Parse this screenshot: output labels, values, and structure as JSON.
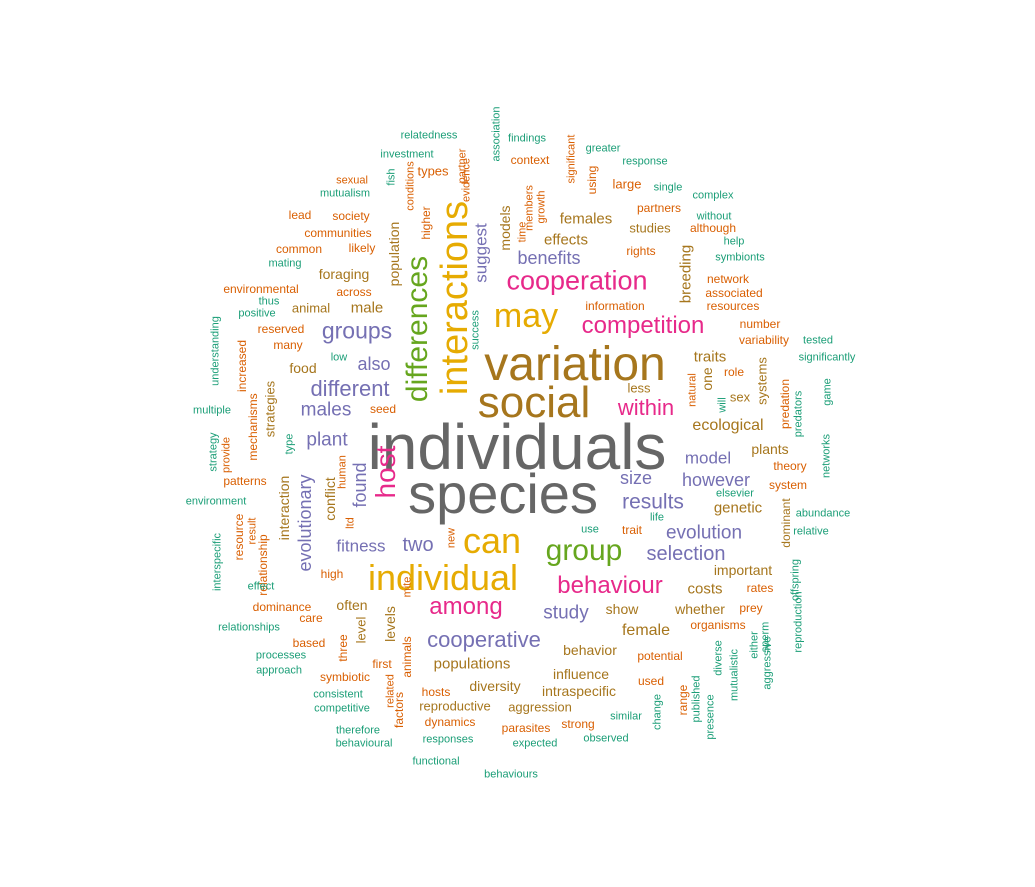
{
  "palette": {
    "gray": "#666666",
    "olive": "#A6761D",
    "gold": "#E6AB02",
    "green": "#66A61E",
    "magenta": "#E7298A",
    "purple": "#7570B3",
    "orange": "#D95F02",
    "teal": "#1B9E77"
  },
  "words": [
    {
      "text": "individuals",
      "color": "gray"
    },
    {
      "text": "species",
      "color": "gray"
    },
    {
      "text": "variation",
      "color": "olive"
    },
    {
      "text": "social",
      "color": "olive"
    },
    {
      "text": "interactions",
      "color": "gold"
    },
    {
      "text": "may",
      "color": "gold"
    },
    {
      "text": "can",
      "color": "gold"
    },
    {
      "text": "individual",
      "color": "gold"
    },
    {
      "text": "group",
      "color": "green"
    },
    {
      "text": "differences",
      "color": "green"
    },
    {
      "text": "cooperation",
      "color": "magenta"
    },
    {
      "text": "competition",
      "color": "magenta"
    },
    {
      "text": "within",
      "color": "magenta"
    },
    {
      "text": "behaviour",
      "color": "magenta"
    },
    {
      "text": "among",
      "color": "magenta"
    },
    {
      "text": "host",
      "color": "magenta"
    },
    {
      "text": "groups",
      "color": "purple"
    },
    {
      "text": "different",
      "color": "purple"
    },
    {
      "text": "males",
      "color": "purple"
    },
    {
      "text": "also",
      "color": "purple"
    },
    {
      "text": "plant",
      "color": "purple"
    },
    {
      "text": "results",
      "color": "purple"
    },
    {
      "text": "however",
      "color": "purple"
    },
    {
      "text": "size",
      "color": "purple"
    },
    {
      "text": "model",
      "color": "purple"
    },
    {
      "text": "evolution",
      "color": "purple"
    },
    {
      "text": "selection",
      "color": "purple"
    },
    {
      "text": "two",
      "color": "purple"
    },
    {
      "text": "fitness",
      "color": "purple"
    },
    {
      "text": "study",
      "color": "purple"
    },
    {
      "text": "cooperative",
      "color": "purple"
    },
    {
      "text": "benefits",
      "color": "purple"
    },
    {
      "text": "suggest",
      "color": "purple"
    },
    {
      "text": "found",
      "color": "purple"
    },
    {
      "text": "evolutionary",
      "color": "purple"
    },
    {
      "text": "effects",
      "color": "olive"
    },
    {
      "text": "females",
      "color": "olive"
    },
    {
      "text": "traits",
      "color": "olive"
    },
    {
      "text": "ecological",
      "color": "olive"
    },
    {
      "text": "genetic",
      "color": "olive"
    },
    {
      "text": "important",
      "color": "olive"
    },
    {
      "text": "costs",
      "color": "olive"
    },
    {
      "text": "whether",
      "color": "olive"
    },
    {
      "text": "female",
      "color": "olive"
    },
    {
      "text": "behavior",
      "color": "olive"
    },
    {
      "text": "show",
      "color": "olive"
    },
    {
      "text": "populations",
      "color": "olive"
    },
    {
      "text": "influence",
      "color": "olive"
    },
    {
      "text": "diversity",
      "color": "olive"
    },
    {
      "text": "intraspecific",
      "color": "olive"
    },
    {
      "text": "aggression",
      "color": "olive"
    },
    {
      "text": "reproductive",
      "color": "olive"
    },
    {
      "text": "often",
      "color": "olive"
    },
    {
      "text": "levels",
      "color": "olive"
    },
    {
      "text": "level",
      "color": "olive"
    },
    {
      "text": "foraging",
      "color": "olive"
    },
    {
      "text": "male",
      "color": "olive"
    },
    {
      "text": "animal",
      "color": "olive"
    },
    {
      "text": "food",
      "color": "olive"
    },
    {
      "text": "population",
      "color": "olive"
    },
    {
      "text": "models",
      "color": "olive"
    },
    {
      "text": "studies",
      "color": "olive"
    },
    {
      "text": "breeding",
      "color": "olive"
    },
    {
      "text": "plants",
      "color": "olive"
    },
    {
      "text": "systems",
      "color": "olive"
    },
    {
      "text": "sex",
      "color": "olive"
    },
    {
      "text": "one",
      "color": "olive"
    },
    {
      "text": "less",
      "color": "olive"
    },
    {
      "text": "interaction",
      "color": "olive"
    },
    {
      "text": "conflict",
      "color": "olive"
    },
    {
      "text": "strategies",
      "color": "olive"
    },
    {
      "text": "dominant",
      "color": "olive"
    },
    {
      "text": "animals",
      "color": "orange"
    },
    {
      "text": "higher",
      "color": "orange"
    },
    {
      "text": "types",
      "color": "orange"
    },
    {
      "text": "conditions",
      "color": "orange"
    },
    {
      "text": "evidence",
      "color": "orange"
    },
    {
      "text": "members",
      "color": "orange"
    },
    {
      "text": "growth",
      "color": "orange"
    },
    {
      "text": "context",
      "color": "orange"
    },
    {
      "text": "significant",
      "color": "orange"
    },
    {
      "text": "using",
      "color": "orange"
    },
    {
      "text": "large",
      "color": "orange"
    },
    {
      "text": "partners",
      "color": "orange"
    },
    {
      "text": "rights",
      "color": "orange"
    },
    {
      "text": "although",
      "color": "orange"
    },
    {
      "text": "network",
      "color": "orange"
    },
    {
      "text": "associated",
      "color": "orange"
    },
    {
      "text": "resources",
      "color": "orange"
    },
    {
      "text": "information",
      "color": "orange"
    },
    {
      "text": "number",
      "color": "orange"
    },
    {
      "text": "variability",
      "color": "orange"
    },
    {
      "text": "role",
      "color": "orange"
    },
    {
      "text": "predation",
      "color": "orange"
    },
    {
      "text": "natural",
      "color": "orange"
    },
    {
      "text": "theory",
      "color": "orange"
    },
    {
      "text": "system",
      "color": "orange"
    },
    {
      "text": "trait",
      "color": "orange"
    },
    {
      "text": "prey",
      "color": "orange"
    },
    {
      "text": "rates",
      "color": "orange"
    },
    {
      "text": "organisms",
      "color": "orange"
    },
    {
      "text": "potential",
      "color": "orange"
    },
    {
      "text": "used",
      "color": "orange"
    },
    {
      "text": "range",
      "color": "orange"
    },
    {
      "text": "parasites",
      "color": "orange"
    },
    {
      "text": "strong",
      "color": "orange"
    },
    {
      "text": "dynamics",
      "color": "orange"
    },
    {
      "text": "hosts",
      "color": "orange"
    },
    {
      "text": "first",
      "color": "orange"
    },
    {
      "text": "factors",
      "color": "orange"
    },
    {
      "text": "symbiotic",
      "color": "orange"
    },
    {
      "text": "three",
      "color": "orange"
    },
    {
      "text": "based",
      "color": "orange"
    },
    {
      "text": "care",
      "color": "orange"
    },
    {
      "text": "dominance",
      "color": "orange"
    },
    {
      "text": "high",
      "color": "orange"
    },
    {
      "text": "relationship",
      "color": "orange"
    },
    {
      "text": "resource",
      "color": "orange"
    },
    {
      "text": "patterns",
      "color": "orange"
    },
    {
      "text": "mechanisms",
      "color": "orange"
    },
    {
      "text": "seed",
      "color": "orange"
    },
    {
      "text": "many",
      "color": "orange"
    },
    {
      "text": "reserved",
      "color": "orange"
    },
    {
      "text": "increased",
      "color": "orange"
    },
    {
      "text": "environmental",
      "color": "orange"
    },
    {
      "text": "common",
      "color": "orange"
    },
    {
      "text": "communities",
      "color": "orange"
    },
    {
      "text": "society",
      "color": "orange"
    },
    {
      "text": "likely",
      "color": "orange"
    },
    {
      "text": "across",
      "color": "orange"
    },
    {
      "text": "sexual",
      "color": "orange"
    },
    {
      "text": "lead",
      "color": "orange"
    },
    {
      "text": "human",
      "color": "orange"
    },
    {
      "text": "ltd",
      "color": "orange"
    },
    {
      "text": "new",
      "color": "orange"
    },
    {
      "text": "mite",
      "color": "orange"
    },
    {
      "text": "related",
      "color": "orange"
    },
    {
      "text": "time",
      "color": "orange"
    },
    {
      "text": "partner",
      "color": "orange"
    },
    {
      "text": "provide",
      "color": "orange"
    },
    {
      "text": "result",
      "color": "orange"
    },
    {
      "text": "relatedness",
      "color": "teal"
    },
    {
      "text": "association",
      "color": "teal"
    },
    {
      "text": "findings",
      "color": "teal"
    },
    {
      "text": "investment",
      "color": "teal"
    },
    {
      "text": "greater",
      "color": "teal"
    },
    {
      "text": "response",
      "color": "teal"
    },
    {
      "text": "fish",
      "color": "teal"
    },
    {
      "text": "mutualism",
      "color": "teal"
    },
    {
      "text": "single",
      "color": "teal"
    },
    {
      "text": "complex",
      "color": "teal"
    },
    {
      "text": "without",
      "color": "teal"
    },
    {
      "text": "help",
      "color": "teal"
    },
    {
      "text": "symbionts",
      "color": "teal"
    },
    {
      "text": "mating",
      "color": "teal"
    },
    {
      "text": "thus",
      "color": "teal"
    },
    {
      "text": "positive",
      "color": "teal"
    },
    {
      "text": "understanding",
      "color": "teal"
    },
    {
      "text": "low",
      "color": "teal"
    },
    {
      "text": "success",
      "color": "teal"
    },
    {
      "text": "tested",
      "color": "teal"
    },
    {
      "text": "significantly",
      "color": "teal"
    },
    {
      "text": "game",
      "color": "teal"
    },
    {
      "text": "will",
      "color": "teal"
    },
    {
      "text": "predators",
      "color": "teal"
    },
    {
      "text": "networks",
      "color": "teal"
    },
    {
      "text": "multiple",
      "color": "teal"
    },
    {
      "text": "strategy",
      "color": "teal"
    },
    {
      "text": "type",
      "color": "teal"
    },
    {
      "text": "environment",
      "color": "teal"
    },
    {
      "text": "elsevier",
      "color": "teal"
    },
    {
      "text": "abundance",
      "color": "teal"
    },
    {
      "text": "life",
      "color": "teal"
    },
    {
      "text": "relative",
      "color": "teal"
    },
    {
      "text": "interspecific",
      "color": "teal"
    },
    {
      "text": "use",
      "color": "teal"
    },
    {
      "text": "offspring",
      "color": "teal"
    },
    {
      "text": "sperm",
      "color": "teal"
    },
    {
      "text": "reproduction",
      "color": "teal"
    },
    {
      "text": "effect",
      "color": "teal"
    },
    {
      "text": "relationships",
      "color": "teal"
    },
    {
      "text": "either",
      "color": "teal"
    },
    {
      "text": "processes",
      "color": "teal"
    },
    {
      "text": "diverse",
      "color": "teal"
    },
    {
      "text": "mutualistic",
      "color": "teal"
    },
    {
      "text": "aggressive",
      "color": "teal"
    },
    {
      "text": "approach",
      "color": "teal"
    },
    {
      "text": "published",
      "color": "teal"
    },
    {
      "text": "consistent",
      "color": "teal"
    },
    {
      "text": "competitive",
      "color": "teal"
    },
    {
      "text": "presence",
      "color": "teal"
    },
    {
      "text": "change",
      "color": "teal"
    },
    {
      "text": "similar",
      "color": "teal"
    },
    {
      "text": "therefore",
      "color": "teal"
    },
    {
      "text": "behavioural",
      "color": "teal"
    },
    {
      "text": "responses",
      "color": "teal"
    },
    {
      "text": "expected",
      "color": "teal"
    },
    {
      "text": "observed",
      "color": "teal"
    },
    {
      "text": "functional",
      "color": "teal"
    },
    {
      "text": "behaviours",
      "color": "teal"
    }
  ]
}
